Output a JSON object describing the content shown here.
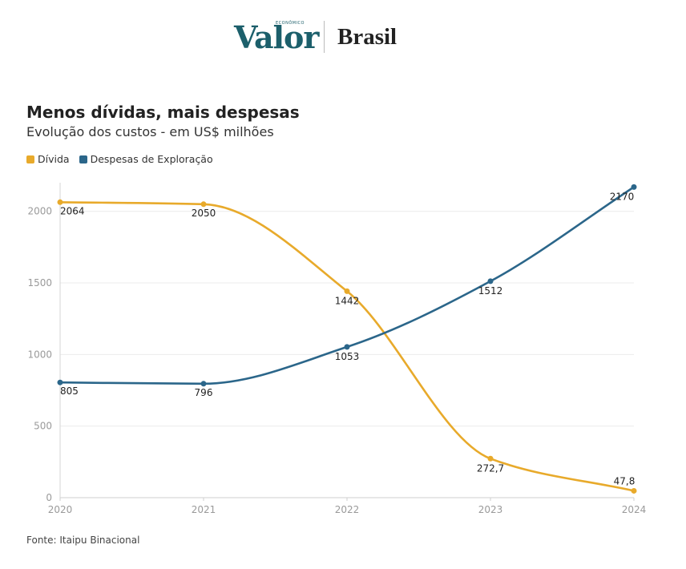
{
  "brand": {
    "name": "Valor",
    "tagline": "ECONÔMICO",
    "section": "Brasil"
  },
  "header": {
    "title": "Menos dívidas, mais despesas",
    "subtitle": "Evolução dos custos - em US$ milhões"
  },
  "legend": [
    {
      "label": "Dívida",
      "color": "#e8aa2b"
    },
    {
      "label": "Despesas de Exploração",
      "color": "#2b668a"
    }
  ],
  "chart_data": {
    "type": "line",
    "x": [
      "2020",
      "2021",
      "2022",
      "2023",
      "2024"
    ],
    "series": [
      {
        "name": "Dívida",
        "color": "#e8aa2b",
        "values": [
          2064,
          2050,
          1442,
          272.7,
          47.8
        ],
        "labels": [
          "2064",
          "2050",
          "1442",
          "272,7",
          "47,8"
        ]
      },
      {
        "name": "Despesas de Exploração",
        "color": "#2b668a",
        "values": [
          805,
          796,
          1053,
          1512,
          2170
        ],
        "labels": [
          "805",
          "796",
          "1053",
          "1512",
          "2170"
        ]
      }
    ],
    "ylim": [
      0,
      2200
    ],
    "yticks": [
      0,
      500,
      1000,
      1500,
      2000
    ],
    "grid": true
  },
  "footer": {
    "source": "Fonte: Itaipu Binacional"
  }
}
